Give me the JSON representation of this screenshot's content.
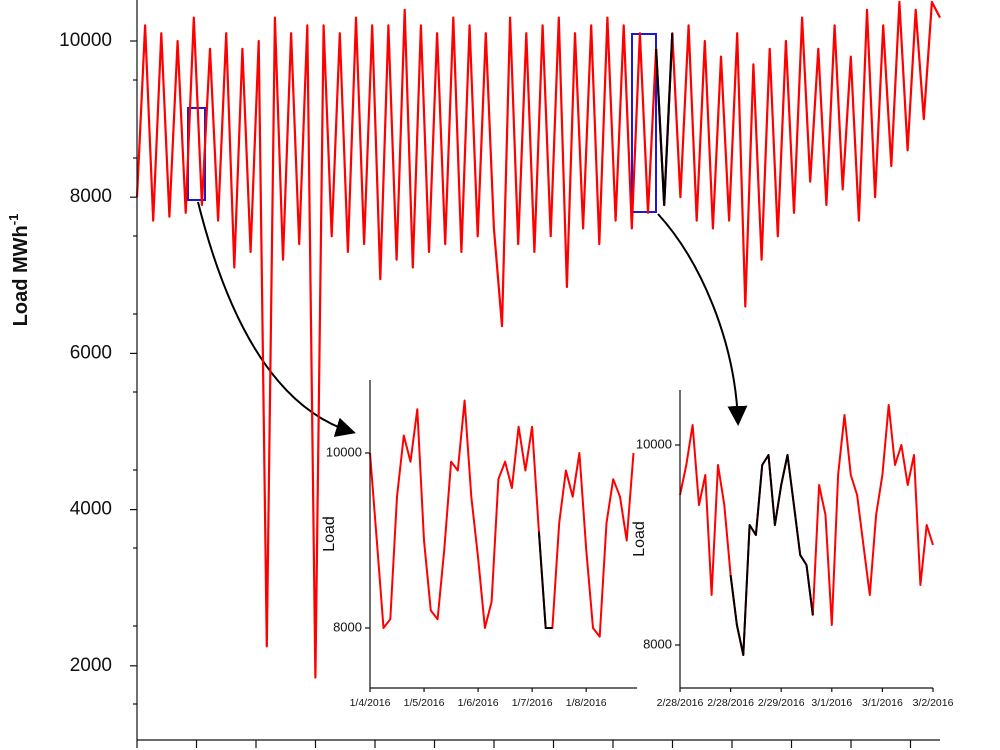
{
  "chart_data": [
    {
      "type": "line",
      "y_label": "Load MWh",
      "y_label_superscript": "-1",
      "ylim": [
        1050,
        10525
      ],
      "yticks": [
        2000,
        4000,
        6000,
        8000,
        10000
      ],
      "series": [
        {
          "color": "#ff0000",
          "values": [
            8000,
            10200,
            7700,
            10100,
            7750,
            10000,
            7800,
            10300,
            7900,
            9900,
            7700,
            10100,
            7100,
            9900,
            7300,
            10000,
            2250,
            10300,
            7200,
            10100,
            7400,
            10200,
            1850,
            10200,
            7500,
            10100,
            7300,
            10300,
            7400,
            10200,
            6950,
            10200,
            7200,
            10400,
            7100,
            10200,
            7300,
            10100,
            7400,
            10300,
            7300,
            10200,
            7500,
            10100,
            7600,
            6350,
            10300,
            7400,
            10100,
            7300,
            10200,
            7500,
            10300,
            6850,
            10100,
            7600,
            10200,
            7400,
            10300,
            7700,
            10200,
            7600,
            10100,
            7800,
            9900,
            7900,
            10100,
            8000,
            10200,
            7700,
            10000,
            7600,
            9800,
            7700,
            10100,
            6600,
            9700,
            7200,
            9900,
            7500,
            10000,
            7800,
            10300,
            8200,
            9900,
            7900,
            10200,
            8100,
            9800,
            7700,
            10400,
            8000,
            10200,
            8400,
            10500,
            8600,
            10400,
            9000,
            10500,
            10300
          ]
        },
        {
          "color": "#000000",
          "values": [
            null,
            null,
            null,
            null,
            null,
            null,
            null,
            null,
            null,
            null,
            null,
            null,
            null,
            null,
            null,
            null,
            null,
            null,
            null,
            null,
            null,
            null,
            null,
            null,
            null,
            null,
            null,
            null,
            null,
            null,
            null,
            null,
            null,
            null,
            null,
            null,
            null,
            null,
            null,
            null,
            null,
            null,
            null,
            null,
            null,
            null,
            null,
            null,
            null,
            null,
            null,
            null,
            null,
            null,
            null,
            null,
            null,
            null,
            null,
            null,
            null,
            null,
            null,
            null,
            9900,
            7900,
            10100,
            null,
            null,
            null,
            null,
            null,
            null,
            null,
            null,
            null,
            null,
            null,
            null,
            null,
            null,
            null,
            null,
            null,
            null,
            null,
            null,
            null,
            null,
            null,
            null,
            null,
            null,
            null,
            null,
            null,
            null,
            null,
            null,
            null
          ]
        }
      ]
    },
    {
      "type": "line",
      "y_label": "Load",
      "ylim": [
        7314,
        10834
      ],
      "yticks": [
        8000,
        10000
      ],
      "xlim": [
        0,
        4.94
      ],
      "xticks": [
        {
          "value": 0,
          "label": "1/4/2016"
        },
        {
          "value": 1,
          "label": "1/5/2016"
        },
        {
          "value": 2,
          "label": "1/6/2016"
        },
        {
          "value": 3,
          "label": "1/7/2016"
        },
        {
          "value": 4,
          "label": "1/8/2016"
        }
      ],
      "series": [
        {
          "color": "#ff0000",
          "x": [
            0,
            0.125,
            0.25,
            0.375,
            0.5,
            0.625,
            0.75,
            0.875,
            1,
            1.125,
            1.25,
            1.375,
            1.5,
            1.625,
            1.75,
            1.875,
            2,
            2.125,
            2.25,
            2.375,
            2.5,
            2.625,
            2.75,
            2.875,
            3,
            3.125,
            3.25,
            3.375,
            3.5,
            3.625,
            3.75,
            3.875,
            4,
            4.125,
            4.25,
            4.375,
            4.5,
            4.625,
            4.75,
            4.875
          ],
          "values": [
            10000,
            9000,
            8000,
            8100,
            9500,
            10200,
            9900,
            10500,
            9000,
            8200,
            8100,
            8900,
            9900,
            9800,
            10600,
            9500,
            8800,
            8000,
            8300,
            9700,
            9900,
            9600,
            10300,
            9800,
            10300,
            9100,
            8000,
            8000,
            9200,
            9800,
            9500,
            10000,
            8900,
            8000,
            7900,
            9200,
            9700,
            9500,
            9000,
            10000
          ]
        },
        {
          "color": "#000000",
          "x": [
            3.125,
            3.25,
            3.375
          ],
          "values": [
            9100,
            8000,
            8000
          ]
        }
      ]
    },
    {
      "type": "line",
      "y_label": "Load",
      "ylim": [
        7570,
        10550
      ],
      "yticks": [
        8000,
        10000
      ],
      "xlim": [
        0,
        5
      ],
      "xticks": [
        {
          "value": 0,
          "label": "2/28/2016"
        },
        {
          "value": 1,
          "label": "2/28/2016"
        },
        {
          "value": 2,
          "label": "2/29/2016"
        },
        {
          "value": 3,
          "label": "3/1/2016"
        },
        {
          "value": 4,
          "label": "3/1/2016"
        },
        {
          "value": 5,
          "label": "3/2/2016"
        }
      ],
      "series": [
        {
          "color": "#ff0000",
          "x": [
            0,
            0.125,
            0.25,
            0.375,
            0.5,
            0.625,
            0.75,
            0.875,
            1,
            1.125,
            1.25,
            1.375,
            1.5,
            1.625,
            1.75,
            1.875,
            2,
            2.125,
            2.25,
            2.375,
            2.5,
            2.625,
            2.75,
            2.875,
            3,
            3.125,
            3.25,
            3.375,
            3.5,
            3.625,
            3.75,
            3.875,
            4,
            4.125,
            4.25,
            4.375,
            4.5,
            4.625,
            4.75,
            4.875,
            5
          ],
          "values": [
            9500,
            9800,
            10200,
            9400,
            9700,
            8500,
            9800,
            9400,
            8700,
            8200,
            7900,
            9200,
            9100,
            9800,
            9900,
            9200,
            9600,
            9900,
            9400,
            8900,
            8800,
            8300,
            9600,
            9300,
            8200,
            9700,
            10300,
            9700,
            9500,
            9000,
            8500,
            9300,
            9700,
            10400,
            9800,
            10000,
            9600,
            9900,
            8600,
            9200,
            9000
          ]
        },
        {
          "color": "#000000",
          "x": [
            1,
            1.125,
            1.25,
            1.375,
            1.5,
            1.625,
            1.75,
            1.875,
            2,
            2.125,
            2.25,
            2.375,
            2.5,
            2.625
          ],
          "values": [
            8700,
            8200,
            7900,
            9200,
            9100,
            9800,
            9900,
            9200,
            9600,
            9900,
            9400,
            8900,
            8800,
            8300
          ]
        }
      ]
    }
  ]
}
